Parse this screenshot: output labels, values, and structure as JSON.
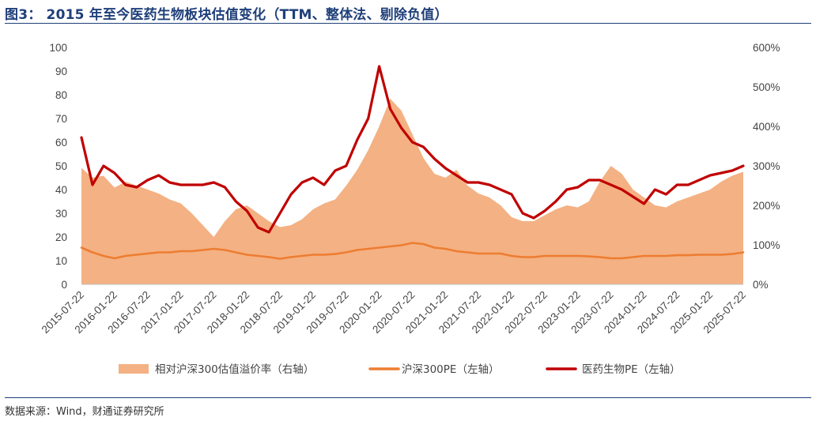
{
  "title": "图3： 2015 年至今医药生物板块估值变化（TTM、整体法、剔除负值）",
  "source": "数据来源：Wind，财通证券研究所",
  "chart_data": {
    "type": "line",
    "x_labels": [
      "2015-07-22",
      "2016-01-22",
      "2016-07-22",
      "2017-01-22",
      "2017-07-22",
      "2018-01-22",
      "2018-07-22",
      "2019-01-22",
      "2019-07-22",
      "2020-01-22",
      "2020-07-22",
      "2021-01-22",
      "2021-07-22",
      "2022-01-22",
      "2022-07-22",
      "2023-01-22",
      "2023-07-22",
      "2024-01-22",
      "2024-07-22",
      "2025-01-22",
      "2025-07-22"
    ],
    "left_axis": {
      "ticks": [
        "0",
        "10",
        "20",
        "30",
        "40",
        "50",
        "60",
        "70",
        "80",
        "90",
        "100"
      ],
      "ylim": [
        0,
        100
      ]
    },
    "right_axis": {
      "ticks": [
        "0%",
        "100%",
        "200%",
        "300%",
        "400%",
        "500%",
        "600%"
      ],
      "ylim": [
        0,
        6
      ]
    },
    "series": [
      {
        "name": "相对沪深300估值溢价率（右轴）",
        "kind": "area",
        "axis": "right",
        "color": "#f4b183",
        "values": [
          2.95,
          2.7,
          2.75,
          2.45,
          2.6,
          2.5,
          2.4,
          2.3,
          2.15,
          2.05,
          1.8,
          1.5,
          1.2,
          1.6,
          1.9,
          2.0,
          1.8,
          1.6,
          1.45,
          1.5,
          1.65,
          1.9,
          2.05,
          2.15,
          2.5,
          2.9,
          3.4,
          4.0,
          4.7,
          4.4,
          3.8,
          3.2,
          2.8,
          2.7,
          2.9,
          2.5,
          2.3,
          2.2,
          2.0,
          1.7,
          1.6,
          1.6,
          1.75,
          1.9,
          2.0,
          1.95,
          2.1,
          2.6,
          3.0,
          2.8,
          2.4,
          2.2,
          2.0,
          1.95,
          2.1,
          2.2,
          2.3,
          2.4,
          2.6,
          2.75,
          2.85
        ]
      },
      {
        "name": "沪深300PE（左轴）",
        "kind": "line",
        "axis": "left",
        "color": "#ed7d31",
        "values": [
          15.5,
          13.5,
          12.0,
          11.0,
          12.0,
          12.5,
          13.0,
          13.5,
          13.5,
          14.0,
          14.0,
          14.5,
          15.0,
          14.5,
          13.5,
          12.5,
          12.0,
          11.5,
          10.8,
          11.5,
          12.0,
          12.5,
          12.5,
          12.8,
          13.5,
          14.5,
          15.0,
          15.5,
          16.0,
          16.5,
          17.5,
          17.0,
          15.5,
          15.0,
          14.0,
          13.5,
          13.0,
          13.0,
          13.0,
          12.0,
          11.5,
          11.5,
          12.0,
          12.0,
          12.0,
          12.0,
          11.8,
          11.5,
          11.0,
          11.0,
          11.5,
          12.0,
          12.0,
          12.0,
          12.3,
          12.3,
          12.5,
          12.5,
          12.5,
          12.8,
          13.5
        ]
      },
      {
        "name": "医药生物PE（左轴）",
        "kind": "line",
        "axis": "left",
        "color": "#c00000",
        "values": [
          62,
          42,
          50,
          47,
          42,
          41,
          44,
          46,
          43,
          42,
          42,
          42,
          43,
          41,
          35,
          31,
          24,
          22,
          30,
          38,
          43,
          45,
          42,
          48,
          50,
          61,
          70,
          92,
          74,
          66,
          60,
          58,
          53,
          49,
          46,
          43,
          43,
          42,
          40,
          38,
          30,
          28,
          31,
          35,
          40,
          41,
          44,
          44,
          42,
          40,
          37,
          34,
          40,
          38,
          42,
          42,
          44,
          46,
          47,
          48,
          50
        ]
      }
    ]
  }
}
